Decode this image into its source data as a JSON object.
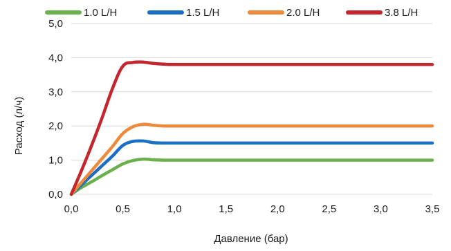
{
  "chart_data": {
    "type": "line",
    "title": "",
    "xlabel": "Давление (бар)",
    "ylabel": "Расход (л/ч)",
    "xlim": [
      0,
      3.5
    ],
    "ylim": [
      0,
      5
    ],
    "x_ticks": [
      "0,0",
      "0,5",
      "1,0",
      "1,5",
      "2,0",
      "2,5",
      "3,0",
      "3,5"
    ],
    "y_ticks": [
      "0,0",
      "1,0",
      "2,0",
      "3,0",
      "4,0",
      "5,0"
    ],
    "grid": "horizontal",
    "legend_position": "top",
    "series": [
      {
        "name": "1.0 L/H",
        "color": "#6ab04c",
        "x": [
          0,
          0.1,
          0.2,
          0.3,
          0.4,
          0.5,
          0.6,
          0.7,
          0.8,
          0.9,
          1.0,
          1.5,
          2.0,
          2.5,
          3.0,
          3.5
        ],
        "y": [
          0,
          0.2,
          0.37,
          0.55,
          0.72,
          0.89,
          0.99,
          1.03,
          1.01,
          1.0,
          1.0,
          1.0,
          1.0,
          1.0,
          1.0,
          1.0
        ]
      },
      {
        "name": "1.5 L/H",
        "color": "#1b6fc2",
        "x": [
          0,
          0.1,
          0.2,
          0.3,
          0.4,
          0.5,
          0.6,
          0.7,
          0.8,
          0.9,
          1.0,
          1.5,
          2.0,
          2.5,
          3.0,
          3.5
        ],
        "y": [
          0,
          0.28,
          0.56,
          0.84,
          1.12,
          1.43,
          1.55,
          1.56,
          1.51,
          1.5,
          1.5,
          1.5,
          1.5,
          1.5,
          1.5,
          1.5
        ]
      },
      {
        "name": "2.0 L/H",
        "color": "#ee8a3c",
        "x": [
          0,
          0.1,
          0.2,
          0.3,
          0.4,
          0.5,
          0.6,
          0.7,
          0.8,
          0.9,
          1.0,
          1.5,
          2.0,
          2.5,
          3.0,
          3.5
        ],
        "y": [
          0,
          0.35,
          0.7,
          1.05,
          1.4,
          1.78,
          1.98,
          2.05,
          2.02,
          2.0,
          2.0,
          2.0,
          2.0,
          2.0,
          2.0,
          2.0
        ]
      },
      {
        "name": "3.8 L/H",
        "color": "#c4262e",
        "x": [
          0,
          0.1,
          0.2,
          0.3,
          0.4,
          0.5,
          0.6,
          0.7,
          0.8,
          0.9,
          1.0,
          1.5,
          2.0,
          2.5,
          3.0,
          3.5
        ],
        "y": [
          0,
          0.7,
          1.45,
          2.25,
          3.1,
          3.75,
          3.86,
          3.87,
          3.83,
          3.81,
          3.8,
          3.8,
          3.8,
          3.8,
          3.8,
          3.8
        ]
      }
    ]
  }
}
